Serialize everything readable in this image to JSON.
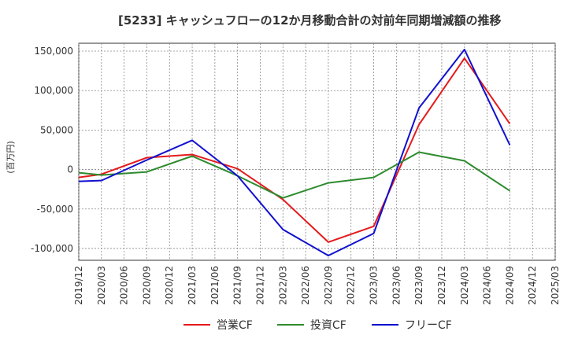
{
  "chart_data": {
    "type": "line",
    "title": "[5233]  キャッシュフローの12か月移動合計の対前年同期増減額の推移",
    "ylabel": "(百万円)",
    "xlabel": "",
    "ylim": [
      -115000,
      160000
    ],
    "yticks": [
      150000,
      100000,
      50000,
      0,
      -50000,
      -100000
    ],
    "ytick_labels": [
      "150,000",
      "100,000",
      "50,000",
      "0",
      "-50,000",
      "-100,000"
    ],
    "categories": [
      "2019/12",
      "2020/03",
      "2020/06",
      "2020/09",
      "2020/12",
      "2021/03",
      "2021/06",
      "2021/09",
      "2021/12",
      "2022/03",
      "2022/06",
      "2022/09",
      "2022/12",
      "2023/03",
      "2023/06",
      "2023/09",
      "2023/12",
      "2024/03",
      "2024/06",
      "2024/09",
      "2024/12",
      "2025/03"
    ],
    "grid": true,
    "legend_position": "bottom",
    "series": [
      {
        "name": "営業CF",
        "color": "#e41a1c",
        "values": [
          -10000,
          -6000,
          null,
          15000,
          null,
          19000,
          null,
          1000,
          null,
          -38000,
          null,
          -92000,
          null,
          -72000,
          null,
          57000,
          null,
          141000,
          null,
          58000,
          null,
          null
        ]
      },
      {
        "name": "投資CF",
        "color": "#2e8b2e",
        "values": [
          -4000,
          -7000,
          null,
          -3000,
          null,
          17000,
          null,
          -8000,
          null,
          -36000,
          null,
          -17000,
          null,
          -10000,
          null,
          22000,
          null,
          11000,
          null,
          -27000,
          null,
          null
        ]
      },
      {
        "name": "フリーCF",
        "color": "#1010d0",
        "values": [
          -15000,
          -14000,
          null,
          12000,
          null,
          37000,
          null,
          -8000,
          null,
          -76000,
          null,
          -109000,
          null,
          -81000,
          null,
          78000,
          null,
          152000,
          null,
          31000,
          null,
          null
        ]
      }
    ]
  }
}
